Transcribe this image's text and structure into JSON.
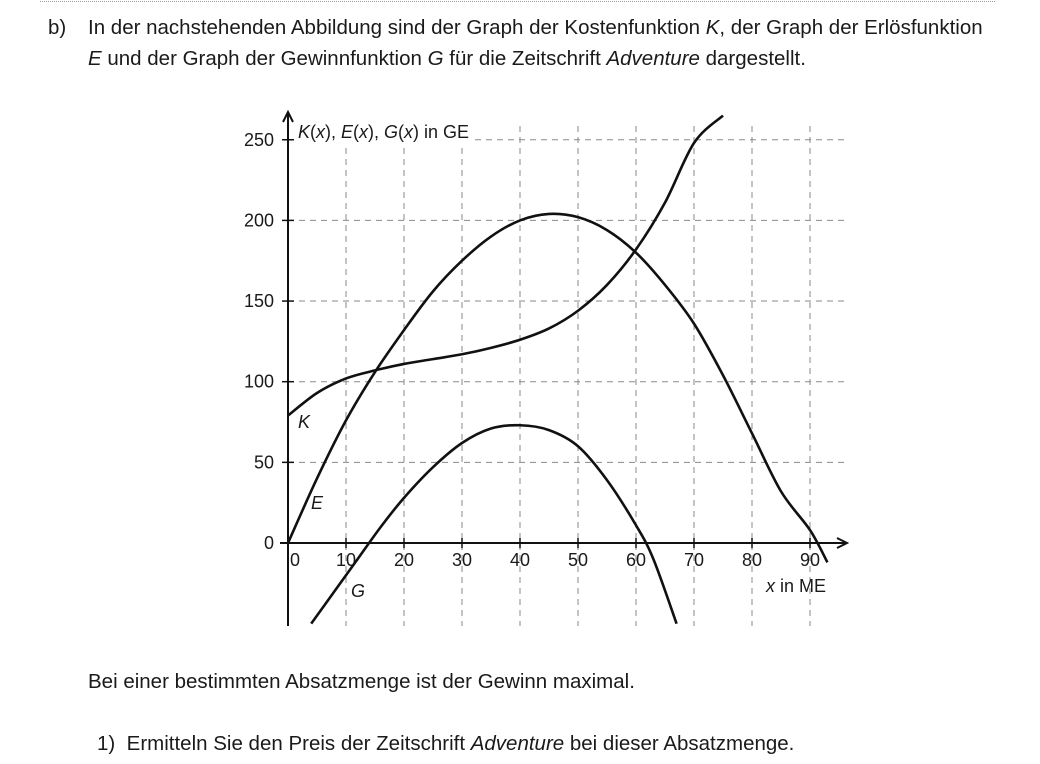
{
  "task": {
    "label": "b)",
    "text_parts": [
      {
        "t": "In der nachstehenden Abbildung sind der Graph der Kostenfunktion "
      },
      {
        "t": "K",
        "i": true
      },
      {
        "t": ", der Graph der Erlösfunktion "
      },
      {
        "t": "E",
        "i": true
      },
      {
        "t": " und der Graph der Gewinnfunktion "
      },
      {
        "t": "G",
        "i": true
      },
      {
        "t": " für die Zeitschrift "
      },
      {
        "t": "Adventure",
        "i": true
      },
      {
        "t": " dargestellt."
      }
    ]
  },
  "chart_data": {
    "type": "line",
    "ylabel_parts": [
      {
        "t": "K",
        "i": true
      },
      {
        "t": "("
      },
      {
        "t": "x",
        "i": true
      },
      {
        "t": "), "
      },
      {
        "t": "E",
        "i": true
      },
      {
        "t": "("
      },
      {
        "t": "x",
        "i": true
      },
      {
        "t": "), "
      },
      {
        "t": "G",
        "i": true
      },
      {
        "t": "("
      },
      {
        "t": "x",
        "i": true
      },
      {
        "t": ") in GE"
      }
    ],
    "xlabel_parts": [
      {
        "t": "x",
        "i": true
      },
      {
        "t": " in ME"
      }
    ],
    "xlim": [
      0,
      95
    ],
    "ylim": [
      -50,
      265
    ],
    "x_ticks": [
      0,
      10,
      20,
      30,
      40,
      50,
      60,
      70,
      80,
      90
    ],
    "y_ticks": [
      0,
      50,
      100,
      150,
      200,
      250
    ],
    "x_tick_labels": [
      "0",
      "10",
      "20",
      "30",
      "40",
      "50",
      "60",
      "70",
      "80",
      "90"
    ],
    "y_tick_labels": [
      "0",
      "50",
      "100",
      "150",
      "200",
      "250"
    ],
    "grid": true,
    "series": [
      {
        "name": "K",
        "x": [
          0,
          5,
          10,
          15,
          20,
          25,
          30,
          35,
          40,
          45,
          50,
          55,
          60,
          65,
          70,
          75
        ],
        "y": [
          79,
          93,
          102,
          107,
          111,
          114,
          117,
          121,
          126,
          133,
          144,
          160,
          182,
          211,
          248,
          265
        ]
      },
      {
        "name": "E",
        "x": [
          0,
          5,
          10,
          15,
          20,
          25,
          30,
          35,
          40,
          45,
          50,
          55,
          60,
          65,
          70,
          75,
          80,
          85,
          90,
          93
        ],
        "y": [
          0,
          40,
          76,
          106,
          132,
          156,
          175,
          190,
          200,
          204,
          202,
          194,
          180,
          160,
          136,
          104,
          68,
          32,
          8,
          -12
        ]
      },
      {
        "name": "G",
        "x": [
          4,
          8,
          12,
          16,
          20,
          25,
          30,
          35,
          40,
          45,
          50,
          55,
          60,
          63,
          67
        ],
        "y": [
          -50,
          -30,
          -10,
          10,
          28,
          47,
          62,
          71,
          73,
          70,
          60,
          39,
          11,
          -10,
          -50
        ]
      }
    ]
  },
  "paragraph": "Bei einer bestimmten Absatzmenge ist der Gewinn maximal.",
  "question": {
    "number": "1)",
    "parts": [
      {
        "t": "Ermitteln Sie den Preis der Zeitschrift "
      },
      {
        "t": "Adventure",
        "i": true
      },
      {
        "t": " bei dieser Absatzmenge."
      }
    ]
  }
}
